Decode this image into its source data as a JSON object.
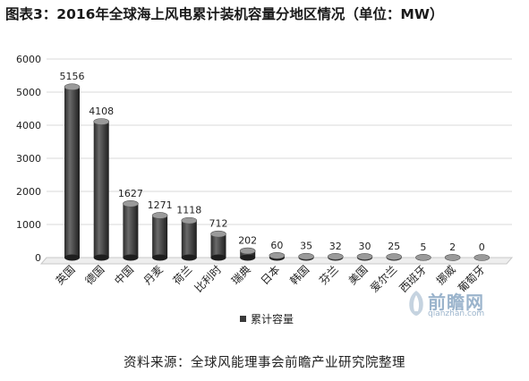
{
  "title": "图表3：2016年全球海上风电累计装机容量分地区情况（单位：MW）",
  "source": "资料来源：全球风能理事会前瞻产业研究院整理",
  "watermark": {
    "main": "前瞻网",
    "sub": "qianzhan.com"
  },
  "colors": {
    "bar": "#3a3a3a",
    "bar_top": "#9a9a9a",
    "grid": "#d9d9d9",
    "text": "#222222"
  },
  "chart_data": {
    "type": "bar",
    "categories": [
      "英国",
      "德国",
      "中国",
      "丹麦",
      "荷兰",
      "比利时",
      "瑞典",
      "日本",
      "韩国",
      "芬兰",
      "美国",
      "爱尔兰",
      "西班牙",
      "挪威",
      "葡萄牙"
    ],
    "series": [
      {
        "name": "累计容量",
        "values": [
          5156,
          4108,
          1627,
          1271,
          1118,
          712,
          202,
          60,
          35,
          32,
          30,
          25,
          5,
          2,
          0
        ]
      }
    ],
    "data_labels": [
      "5156",
      "4108",
      "1627",
      "1271",
      "1118",
      "712",
      "202",
      "60",
      "35",
      "32",
      "30",
      "25",
      "5",
      "2",
      "0"
    ],
    "yticks": [
      0,
      1000,
      2000,
      3000,
      4000,
      5000,
      6000
    ],
    "ylim": [
      0,
      6000
    ],
    "grid": true,
    "legend": "bottom"
  }
}
